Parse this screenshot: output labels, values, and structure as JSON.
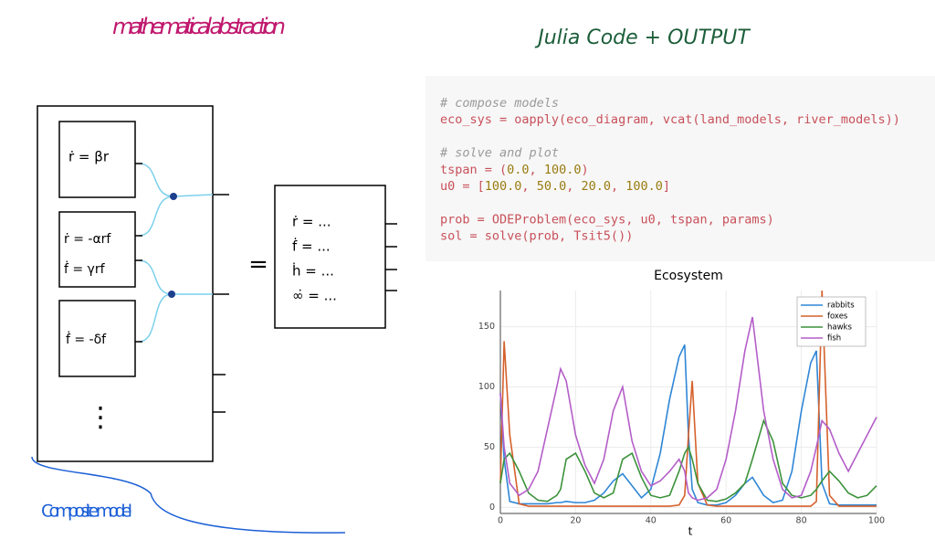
{
  "left_title": "mathematical abstraction",
  "right_title": "Julia Code + OUTPUT",
  "diagram": {
    "boxes": [
      [
        "ṙ = βr"
      ],
      [
        "ṙ = -αrf",
        "ḟ = γrf"
      ],
      [
        "ḟ = -δf"
      ]
    ],
    "more": "⋮",
    "equals": "=",
    "result": [
      "ṙ = ...",
      "ḟ = ...",
      "ḣ = ...",
      "∞̇ = ..."
    ],
    "caption": "Composite model"
  },
  "code": [
    "# compose models",
    "eco_sys = oapply(eco_diagram, vcat(land_models, river_models))",
    "",
    "# solve and plot",
    "tspan = (0.0, 100.0)",
    "u0 = [100.0, 50.0, 20.0, 100.0]",
    "",
    "prob = ODEProblem(eco_sys, u0, tspan, params)",
    "sol = solve(prob, Tsit5())"
  ],
  "chart_data": {
    "type": "line",
    "title": "Ecosystem",
    "x_label": "t",
    "x": [
      0,
      1,
      2.5,
      5,
      7.5,
      10,
      12.5,
      15,
      16,
      17.5,
      20,
      22.5,
      25,
      27.5,
      30,
      32.5,
      35,
      37.5,
      40,
      42.5,
      45,
      47.5,
      49,
      50,
      51,
      52.5,
      55,
      57.5,
      60,
      62.5,
      65,
      67,
      70,
      72.5,
      75,
      77.5,
      80,
      82.5,
      84,
      85.5,
      87.5,
      90,
      92.5,
      95,
      97.5,
      100
    ],
    "series": [
      {
        "name": "rabbits",
        "color": "#2f86d6",
        "values": [
          95,
          40,
          5,
          3,
          3,
          3,
          3,
          4,
          4,
          5,
          4,
          4,
          6,
          12,
          22,
          28,
          18,
          8,
          15,
          45,
          90,
          125,
          135,
          60,
          15,
          4,
          2,
          2,
          4,
          10,
          20,
          25,
          10,
          4,
          6,
          30,
          80,
          120,
          130,
          20,
          3,
          2,
          2,
          2,
          2,
          2
        ]
      },
      {
        "name": "foxes",
        "color": "#d5612c",
        "values": [
          20,
          138,
          60,
          3,
          1,
          1,
          1,
          1,
          1,
          1,
          1,
          1,
          1,
          1,
          1,
          1,
          1,
          1,
          1,
          1,
          1,
          2,
          10,
          60,
          105,
          20,
          2,
          1,
          1,
          1,
          1,
          1,
          1,
          1,
          1,
          1,
          1,
          1,
          5,
          180,
          10,
          1,
          1,
          1,
          1,
          1
        ]
      },
      {
        "name": "hawks",
        "color": "#3c923b",
        "values": [
          20,
          40,
          45,
          30,
          12,
          6,
          5,
          10,
          15,
          40,
          45,
          30,
          12,
          8,
          12,
          40,
          45,
          25,
          10,
          8,
          10,
          30,
          45,
          50,
          40,
          20,
          6,
          5,
          7,
          12,
          20,
          40,
          72,
          55,
          20,
          10,
          8,
          10,
          15,
          22,
          30,
          22,
          12,
          8,
          10,
          18
        ]
      },
      {
        "name": "fish",
        "color": "#b45ec8",
        "values": [
          95,
          50,
          20,
          10,
          15,
          30,
          65,
          100,
          115,
          105,
          60,
          35,
          20,
          40,
          80,
          100,
          55,
          30,
          18,
          22,
          30,
          40,
          30,
          12,
          8,
          6,
          8,
          15,
          40,
          80,
          130,
          158,
          80,
          40,
          15,
          8,
          10,
          30,
          50,
          72,
          65,
          45,
          30,
          45,
          60,
          75
        ]
      }
    ],
    "xlim": [
      0,
      100
    ],
    "xticks": [
      0,
      20,
      40,
      60,
      80,
      100
    ],
    "ylim": [
      -5,
      180
    ],
    "yticks": [
      0,
      50,
      100,
      150
    ],
    "grid": true,
    "legend": "top-right"
  }
}
